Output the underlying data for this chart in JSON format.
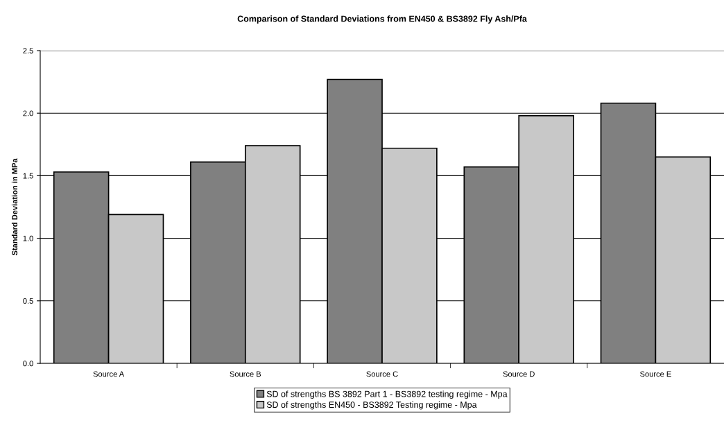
{
  "chart_data": {
    "type": "bar",
    "title": "Comparison of Standard Deviations from EN450 & BS3892 Fly Ash/Pfa",
    "ylabel": "Standard Deviation in MPa",
    "categories": [
      "Source A",
      "Source B",
      "Source C",
      "Source D",
      "Source E"
    ],
    "series": [
      {
        "name": "SD of strengths BS 3892 Part 1 - BS3892 testing regime - Mpa",
        "color": "#808080",
        "values": [
          1.53,
          1.61,
          2.27,
          1.57,
          2.08
        ]
      },
      {
        "name": "SD of strengths EN450 - BS3892 Testing regime - Mpa",
        "color": "#c8c8c8",
        "values": [
          1.19,
          1.74,
          1.72,
          1.98,
          1.65
        ]
      }
    ],
    "ylim": [
      0,
      2.5
    ],
    "yticks": [
      {
        "value": 0,
        "label": "0.0"
      },
      {
        "value": 0.5,
        "label": "0.5"
      },
      {
        "value": 1,
        "label": "1.0"
      },
      {
        "value": 1.5,
        "label": "1.5"
      },
      {
        "value": 2,
        "label": "2.0"
      },
      {
        "value": 2.5,
        "label": "2.5"
      }
    ],
    "grid": "y",
    "legend": "bottom"
  }
}
